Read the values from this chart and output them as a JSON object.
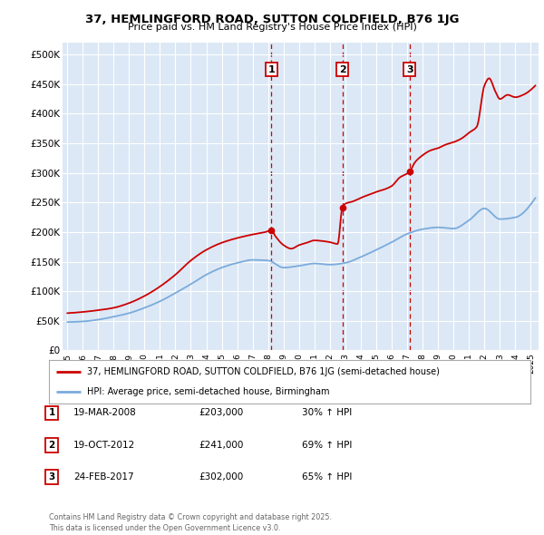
{
  "title": "37, HEMLINGFORD ROAD, SUTTON COLDFIELD, B76 1JG",
  "subtitle": "Price paid vs. HM Land Registry's House Price Index (HPI)",
  "background_color": "#f0f0f0",
  "plot_bg_color": "#dce8f5",
  "ylim": [
    0,
    520000
  ],
  "yticks": [
    0,
    50000,
    100000,
    150000,
    200000,
    250000,
    300000,
    350000,
    400000,
    450000,
    500000
  ],
  "ytick_labels": [
    "£0",
    "£50K",
    "£100K",
    "£150K",
    "£200K",
    "£250K",
    "£300K",
    "£350K",
    "£400K",
    "£450K",
    "£500K"
  ],
  "xlim_start": 1994.7,
  "xlim_end": 2025.5,
  "xticks": [
    1995,
    1996,
    1997,
    1998,
    1999,
    2000,
    2001,
    2002,
    2003,
    2004,
    2005,
    2006,
    2007,
    2008,
    2009,
    2010,
    2011,
    2012,
    2013,
    2014,
    2015,
    2016,
    2017,
    2018,
    2019,
    2020,
    2021,
    2022,
    2023,
    2024,
    2025
  ],
  "red_line_label": "37, HEMLINGFORD ROAD, SUTTON COLDFIELD, B76 1JG (semi-detached house)",
  "blue_line_label": "HPI: Average price, semi-detached house, Birmingham",
  "sale_markers": [
    {
      "id": 1,
      "date_label": "19-MAR-2008",
      "price": 203000,
      "price_label": "£203,000",
      "hpi_label": "30% ↑ HPI",
      "x": 2008.21
    },
    {
      "id": 2,
      "date_label": "19-OCT-2012",
      "price": 241000,
      "price_label": "£241,000",
      "hpi_label": "69% ↑ HPI",
      "x": 2012.8
    },
    {
      "id": 3,
      "date_label": "24-FEB-2017",
      "price": 302000,
      "price_label": "£302,000",
      "hpi_label": "65% ↑ HPI",
      "x": 2017.15
    }
  ],
  "footer": "Contains HM Land Registry data © Crown copyright and database right 2025.\nThis data is licensed under the Open Government Licence v3.0.",
  "red_color": "#cc0000",
  "blue_color": "#7aabdc",
  "vline_color": "#cc0000",
  "marker_box_color": "#cc0000",
  "blue_key_years": [
    1995.0,
    1996.0,
    1997.0,
    1998.0,
    1999.0,
    2000.0,
    2001.0,
    2002.0,
    2003.0,
    2004.0,
    2005.0,
    2006.0,
    2007.0,
    2008.0,
    2009.0,
    2010.0,
    2011.0,
    2012.0,
    2013.0,
    2014.0,
    2015.0,
    2016.0,
    2017.0,
    2018.0,
    2019.0,
    2020.0,
    2021.0,
    2022.0,
    2023.0,
    2024.0,
    2025.3
  ],
  "blue_key_prices": [
    48000,
    49000,
    52000,
    57000,
    63000,
    72000,
    83000,
    97000,
    112000,
    128000,
    140000,
    148000,
    153000,
    152000,
    140000,
    143000,
    147000,
    145000,
    148000,
    158000,
    170000,
    183000,
    197000,
    205000,
    208000,
    206000,
    220000,
    240000,
    222000,
    225000,
    258000
  ],
  "red_key_years": [
    1995.0,
    1996.0,
    1997.0,
    1998.0,
    1999.0,
    2000.0,
    2001.0,
    2002.0,
    2003.0,
    2004.0,
    2005.0,
    2006.0,
    2007.0,
    2007.8,
    2008.21,
    2008.5,
    2009.0,
    2009.5,
    2010.0,
    2010.5,
    2011.0,
    2011.5,
    2012.0,
    2012.5,
    2012.8,
    2013.0,
    2013.5,
    2014.0,
    2014.5,
    2015.0,
    2015.5,
    2016.0,
    2016.5,
    2017.15,
    2017.5,
    2018.0,
    2018.5,
    2019.0,
    2019.5,
    2020.0,
    2020.5,
    2021.0,
    2021.5,
    2022.0,
    2022.3,
    2022.7,
    2023.0,
    2023.5,
    2024.0,
    2024.5,
    2025.3
  ],
  "red_key_prices": [
    63000,
    65000,
    68000,
    72000,
    80000,
    92000,
    108000,
    128000,
    152000,
    170000,
    182000,
    190000,
    196000,
    200000,
    203000,
    192000,
    178000,
    172000,
    178000,
    182000,
    186000,
    185000,
    183000,
    180000,
    241000,
    248000,
    252000,
    258000,
    263000,
    268000,
    272000,
    278000,
    292000,
    302000,
    318000,
    330000,
    338000,
    342000,
    348000,
    352000,
    358000,
    368000,
    378000,
    448000,
    460000,
    438000,
    425000,
    432000,
    428000,
    432000,
    448000
  ]
}
